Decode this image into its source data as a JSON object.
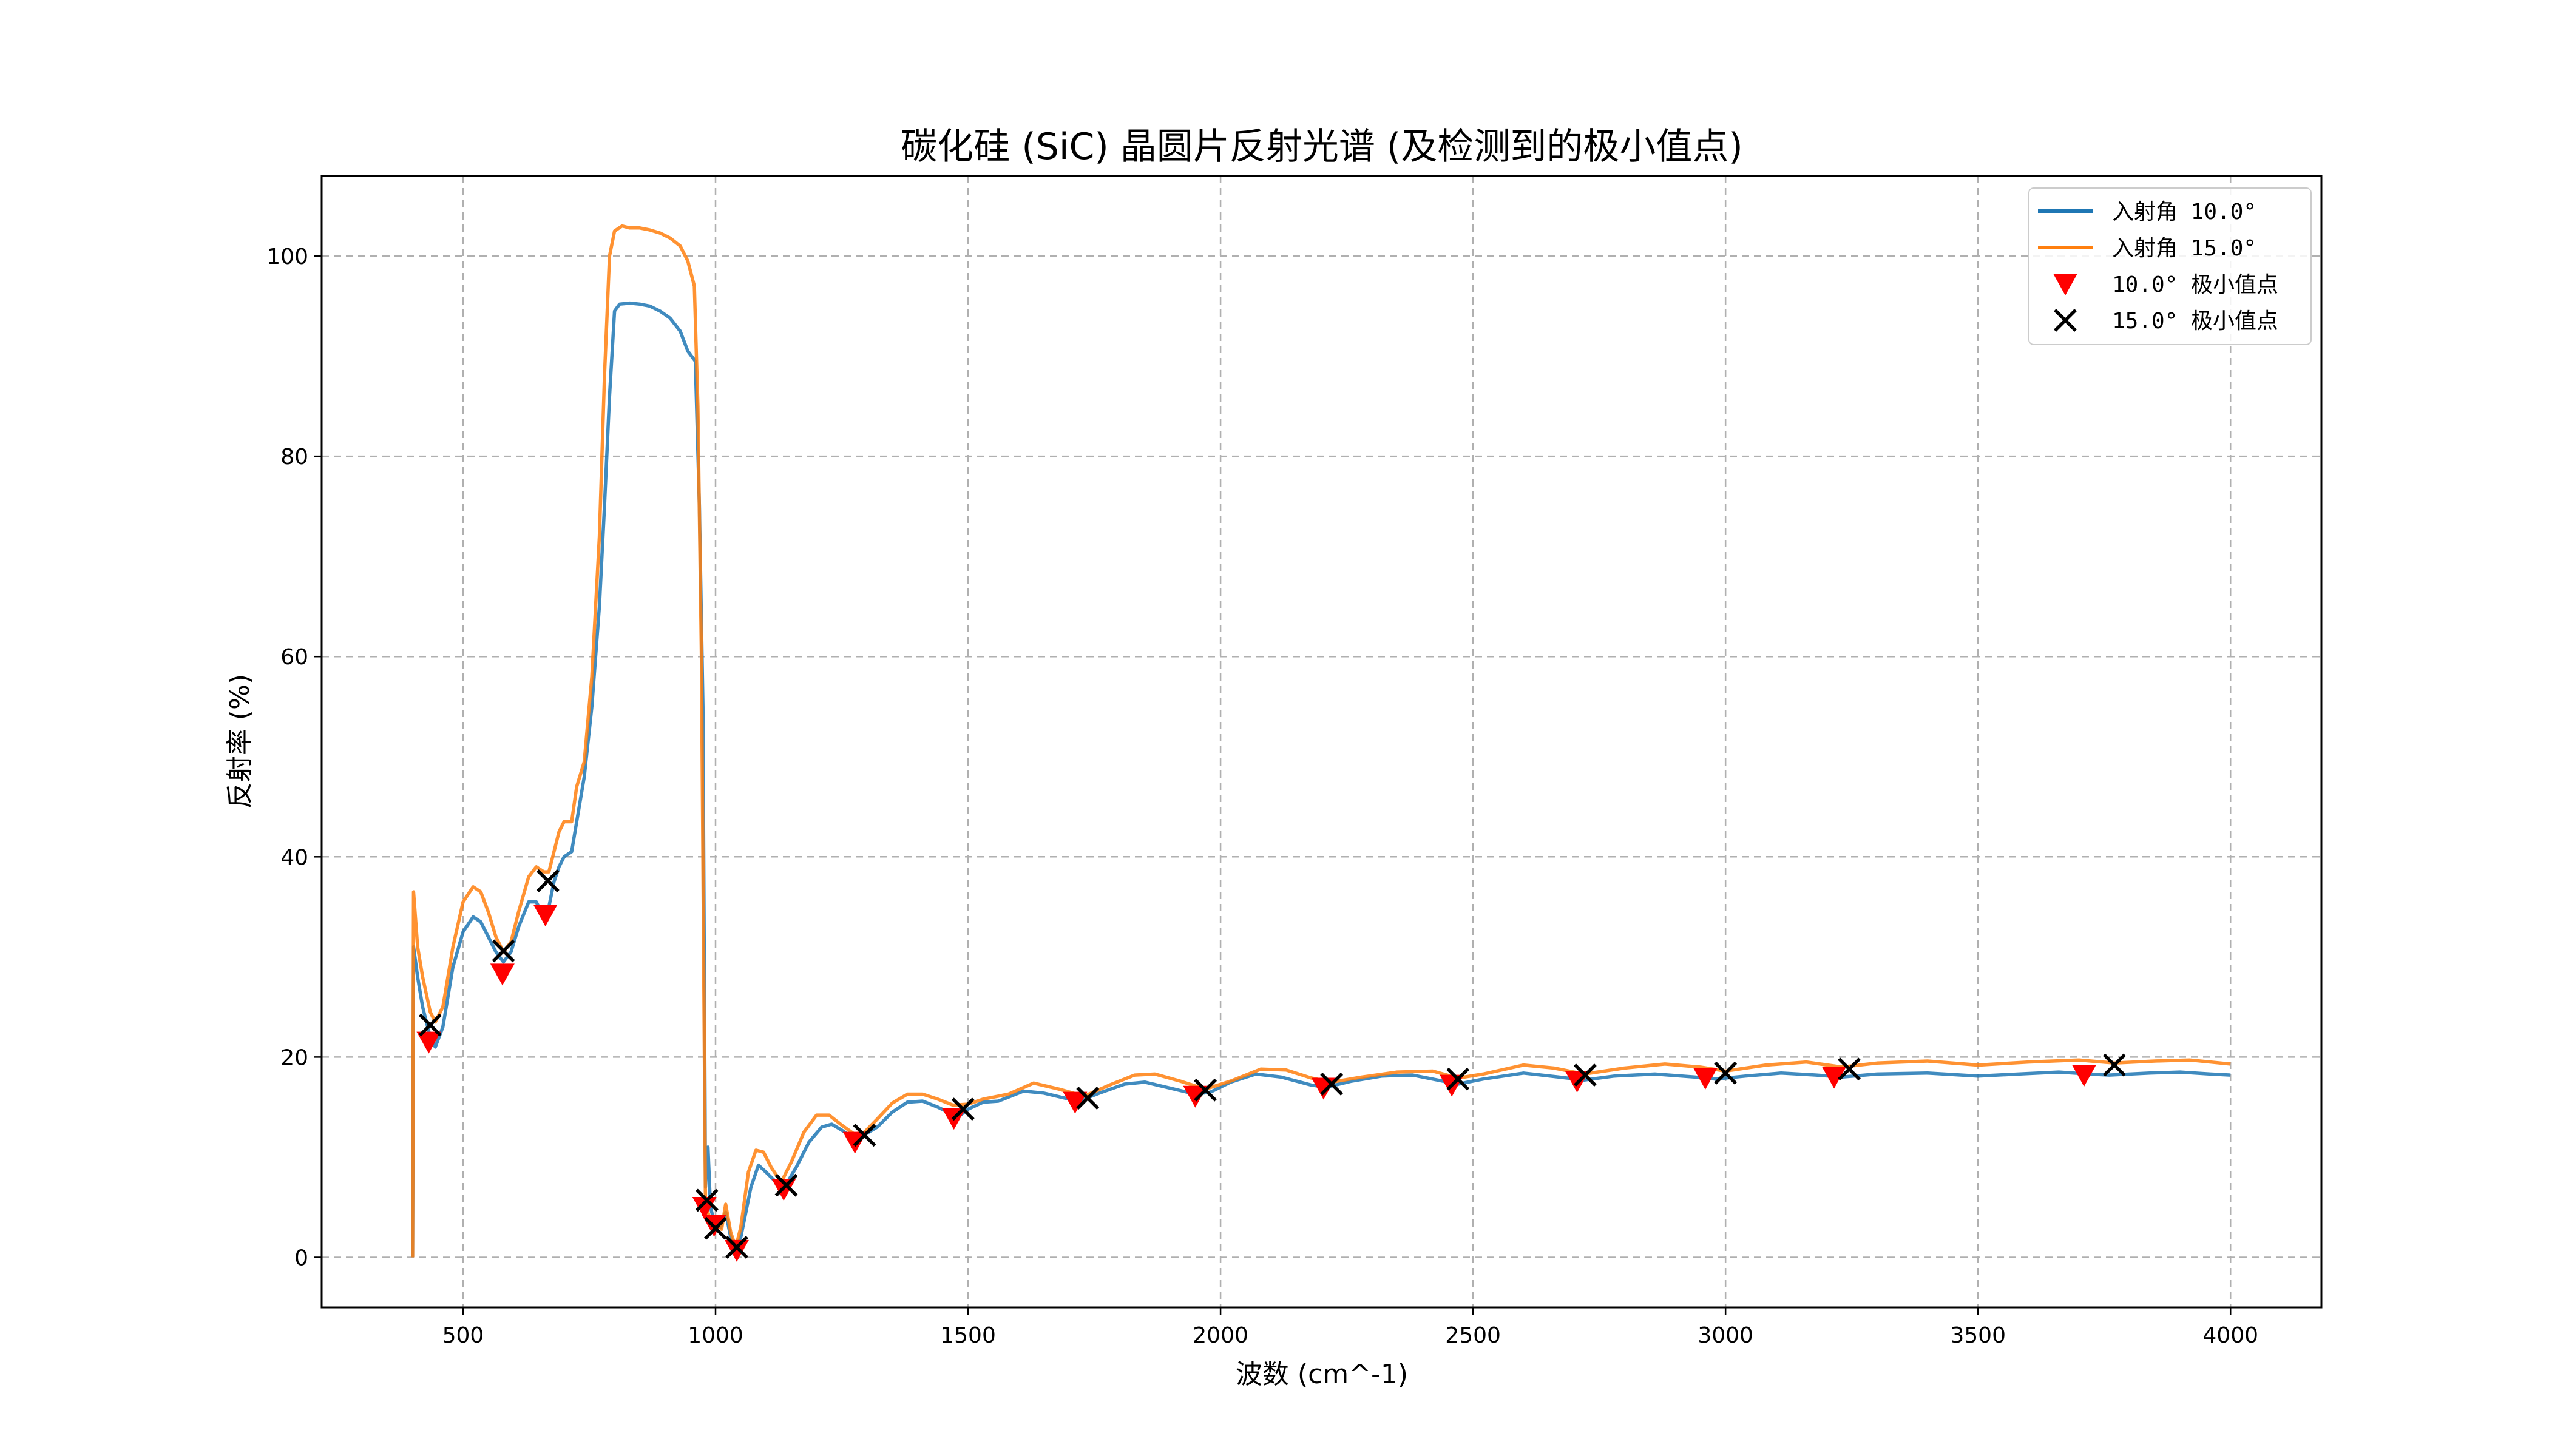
{
  "chart_data": {
    "type": "line",
    "title": "碳化硅 (SiC) 晶圆片反射光谱 (及检测到的极小值点)",
    "xlabel": "波数 (cm^-1)",
    "ylabel": "反射率 (%)",
    "xlim": [
      220,
      4180
    ],
    "ylim": [
      -5,
      108
    ],
    "xticks": [
      500,
      1000,
      1500,
      2000,
      2500,
      3000,
      3500,
      4000
    ],
    "yticks": [
      0,
      20,
      40,
      60,
      80,
      100
    ],
    "grid": true,
    "legend_position": "top-right",
    "series": [
      {
        "name": "入射角 10.0°",
        "color": "#1f77b4",
        "points": [
          [
            400,
            0
          ],
          [
            402,
            31
          ],
          [
            410,
            28
          ],
          [
            420,
            25
          ],
          [
            435,
            22
          ],
          [
            445,
            21
          ],
          [
            460,
            23
          ],
          [
            480,
            29
          ],
          [
            500,
            32.5
          ],
          [
            520,
            34
          ],
          [
            535,
            33.5
          ],
          [
            550,
            32
          ],
          [
            565,
            30.5
          ],
          [
            580,
            29.5
          ],
          [
            595,
            30.5
          ],
          [
            610,
            33
          ],
          [
            630,
            35.5
          ],
          [
            645,
            35.5
          ],
          [
            660,
            34
          ],
          [
            670,
            35
          ],
          [
            680,
            37.5
          ],
          [
            690,
            39
          ],
          [
            700,
            40
          ],
          [
            715,
            40.5
          ],
          [
            725,
            43.5
          ],
          [
            740,
            48
          ],
          [
            755,
            55
          ],
          [
            770,
            65
          ],
          [
            780,
            75
          ],
          [
            790,
            86
          ],
          [
            800,
            94.5
          ],
          [
            810,
            95.2
          ],
          [
            830,
            95.3
          ],
          [
            850,
            95.2
          ],
          [
            870,
            95.0
          ],
          [
            890,
            94.5
          ],
          [
            910,
            93.8
          ],
          [
            930,
            92.5
          ],
          [
            945,
            90.5
          ],
          [
            960,
            89.5
          ],
          [
            968,
            75
          ],
          [
            975,
            55
          ],
          [
            980,
            7
          ],
          [
            985,
            11
          ],
          [
            990,
            5
          ],
          [
            995,
            4
          ],
          [
            1000,
            3.5
          ],
          [
            1005,
            3.8
          ],
          [
            1010,
            3.0
          ],
          [
            1020,
            4.5
          ],
          [
            1030,
            2.0
          ],
          [
            1040,
            0.8
          ],
          [
            1050,
            2
          ],
          [
            1070,
            7
          ],
          [
            1085,
            9.2
          ],
          [
            1100,
            8.5
          ],
          [
            1120,
            7.5
          ],
          [
            1140,
            7.3
          ],
          [
            1160,
            9
          ],
          [
            1185,
            11.5
          ],
          [
            1210,
            13
          ],
          [
            1230,
            13.3
          ],
          [
            1250,
            12.7
          ],
          [
            1270,
            12.0
          ],
          [
            1290,
            12.1
          ],
          [
            1320,
            13
          ],
          [
            1350,
            14.5
          ],
          [
            1380,
            15.5
          ],
          [
            1410,
            15.6
          ],
          [
            1440,
            15
          ],
          [
            1480,
            14
          ],
          [
            1500,
            14.8
          ],
          [
            1530,
            15.5
          ],
          [
            1560,
            15.6
          ],
          [
            1580,
            16.0
          ],
          [
            1610,
            16.6
          ],
          [
            1650,
            16.4
          ],
          [
            1700,
            15.8
          ],
          [
            1720,
            15.6
          ],
          [
            1760,
            16.4
          ],
          [
            1810,
            17.3
          ],
          [
            1850,
            17.5
          ],
          [
            1900,
            16.9
          ],
          [
            1950,
            16.3
          ],
          [
            1980,
            16.5
          ],
          [
            2020,
            17.5
          ],
          [
            2070,
            18.3
          ],
          [
            2120,
            18.0
          ],
          [
            2180,
            17.2
          ],
          [
            2210,
            17.0
          ],
          [
            2260,
            17.6
          ],
          [
            2320,
            18.1
          ],
          [
            2380,
            18.2
          ],
          [
            2440,
            17.6
          ],
          [
            2470,
            17.3
          ],
          [
            2520,
            17.8
          ],
          [
            2600,
            18.4
          ],
          [
            2670,
            18.0
          ],
          [
            2720,
            17.7
          ],
          [
            2780,
            18.1
          ],
          [
            2860,
            18.3
          ],
          [
            2940,
            18.0
          ],
          [
            2980,
            17.8
          ],
          [
            3040,
            18.1
          ],
          [
            3110,
            18.4
          ],
          [
            3180,
            18.2
          ],
          [
            3230,
            18.0
          ],
          [
            3300,
            18.3
          ],
          [
            3400,
            18.4
          ],
          [
            3500,
            18.1
          ],
          [
            3580,
            18.3
          ],
          [
            3660,
            18.5
          ],
          [
            3720,
            18.3
          ],
          [
            3760,
            18.2
          ],
          [
            3840,
            18.4
          ],
          [
            3900,
            18.5
          ],
          [
            3960,
            18.3
          ],
          [
            4000,
            18.2
          ]
        ]
      },
      {
        "name": "入射角 15.0°",
        "color": "#ff7f0e",
        "points": [
          [
            400,
            0
          ],
          [
            402,
            36.5
          ],
          [
            410,
            31
          ],
          [
            420,
            28
          ],
          [
            435,
            24.5
          ],
          [
            445,
            23.5
          ],
          [
            460,
            25
          ],
          [
            480,
            31
          ],
          [
            500,
            35.5
          ],
          [
            520,
            37
          ],
          [
            535,
            36.5
          ],
          [
            550,
            34.5
          ],
          [
            565,
            32
          ],
          [
            580,
            30.5
          ],
          [
            595,
            31.5
          ],
          [
            610,
            34.5
          ],
          [
            630,
            38
          ],
          [
            645,
            39
          ],
          [
            660,
            38.5
          ],
          [
            670,
            38.5
          ],
          [
            680,
            40.5
          ],
          [
            690,
            42.5
          ],
          [
            700,
            43.5
          ],
          [
            715,
            43.5
          ],
          [
            725,
            47
          ],
          [
            740,
            49.5
          ],
          [
            755,
            58
          ],
          [
            770,
            72
          ],
          [
            780,
            88
          ],
          [
            790,
            100
          ],
          [
            800,
            102.5
          ],
          [
            815,
            103
          ],
          [
            830,
            102.8
          ],
          [
            850,
            102.8
          ],
          [
            870,
            102.6
          ],
          [
            890,
            102.3
          ],
          [
            910,
            101.8
          ],
          [
            930,
            101
          ],
          [
            945,
            99.5
          ],
          [
            958,
            97
          ],
          [
            965,
            85
          ],
          [
            972,
            60
          ],
          [
            980,
            5.5
          ],
          [
            985,
            4.5
          ],
          [
            990,
            3.5
          ],
          [
            995,
            3.2
          ],
          [
            1000,
            3.0
          ],
          [
            1005,
            3.3
          ],
          [
            1012,
            2.8
          ],
          [
            1020,
            5.3
          ],
          [
            1030,
            2.5
          ],
          [
            1040,
            1.0
          ],
          [
            1050,
            3
          ],
          [
            1065,
            8.5
          ],
          [
            1080,
            10.7
          ],
          [
            1095,
            10.5
          ],
          [
            1110,
            9
          ],
          [
            1130,
            7.5
          ],
          [
            1150,
            9.5
          ],
          [
            1175,
            12.5
          ],
          [
            1200,
            14.2
          ],
          [
            1225,
            14.2
          ],
          [
            1250,
            13.2
          ],
          [
            1275,
            12.3
          ],
          [
            1295,
            12.5
          ],
          [
            1320,
            13.8
          ],
          [
            1350,
            15.4
          ],
          [
            1380,
            16.3
          ],
          [
            1410,
            16.3
          ],
          [
            1440,
            15.8
          ],
          [
            1470,
            15.2
          ],
          [
            1500,
            15.3
          ],
          [
            1530,
            15.8
          ],
          [
            1580,
            16.3
          ],
          [
            1630,
            17.4
          ],
          [
            1680,
            16.8
          ],
          [
            1730,
            16.1
          ],
          [
            1780,
            17.2
          ],
          [
            1830,
            18.2
          ],
          [
            1870,
            18.3
          ],
          [
            1920,
            17.6
          ],
          [
            1970,
            16.8
          ],
          [
            2020,
            17.6
          ],
          [
            2080,
            18.8
          ],
          [
            2130,
            18.7
          ],
          [
            2180,
            17.9
          ],
          [
            2220,
            17.5
          ],
          [
            2280,
            18.0
          ],
          [
            2350,
            18.5
          ],
          [
            2420,
            18.6
          ],
          [
            2470,
            17.9
          ],
          [
            2520,
            18.3
          ],
          [
            2600,
            19.2
          ],
          [
            2660,
            18.9
          ],
          [
            2720,
            18.3
          ],
          [
            2800,
            18.9
          ],
          [
            2880,
            19.3
          ],
          [
            2950,
            19.0
          ],
          [
            3000,
            18.6
          ],
          [
            3080,
            19.2
          ],
          [
            3160,
            19.5
          ],
          [
            3230,
            19.0
          ],
          [
            3300,
            19.4
          ],
          [
            3400,
            19.6
          ],
          [
            3500,
            19.2
          ],
          [
            3600,
            19.5
          ],
          [
            3700,
            19.7
          ],
          [
            3770,
            19.4
          ],
          [
            3850,
            19.6
          ],
          [
            3920,
            19.7
          ],
          [
            4000,
            19.3
          ]
        ]
      }
    ],
    "minima": [
      {
        "name": "10.0°  极小值点",
        "marker": "triangle-down",
        "color": "#ff0000",
        "points": [
          [
            432,
            21.5
          ],
          [
            578,
            28.3
          ],
          [
            663,
            34.2
          ],
          [
            978,
            5.0
          ],
          [
            997,
            3.2
          ],
          [
            1042,
            0.7
          ],
          [
            1135,
            6.8
          ],
          [
            1276,
            11.5
          ],
          [
            1472,
            13.9
          ],
          [
            1712,
            15.5
          ],
          [
            1950,
            16.1
          ],
          [
            2204,
            16.9
          ],
          [
            2458,
            17.2
          ],
          [
            2706,
            17.6
          ],
          [
            2960,
            17.9
          ],
          [
            3215,
            18.0
          ],
          [
            3710,
            18.2
          ]
        ]
      },
      {
        "name": "15.0°  极小值点",
        "marker": "x",
        "color": "#000000",
        "points": [
          [
            435,
            23.2
          ],
          [
            580,
            30.6
          ],
          [
            668,
            37.6
          ],
          [
            983,
            5.7
          ],
          [
            1000,
            2.9
          ],
          [
            1042,
            1.0
          ],
          [
            1140,
            7.2
          ],
          [
            1295,
            12.2
          ],
          [
            1490,
            14.8
          ],
          [
            1737,
            15.9
          ],
          [
            1970,
            16.7
          ],
          [
            2220,
            17.3
          ],
          [
            2470,
            17.8
          ],
          [
            2722,
            18.2
          ],
          [
            3000,
            18.4
          ],
          [
            3245,
            18.8
          ],
          [
            3770,
            19.2
          ]
        ]
      }
    ]
  }
}
